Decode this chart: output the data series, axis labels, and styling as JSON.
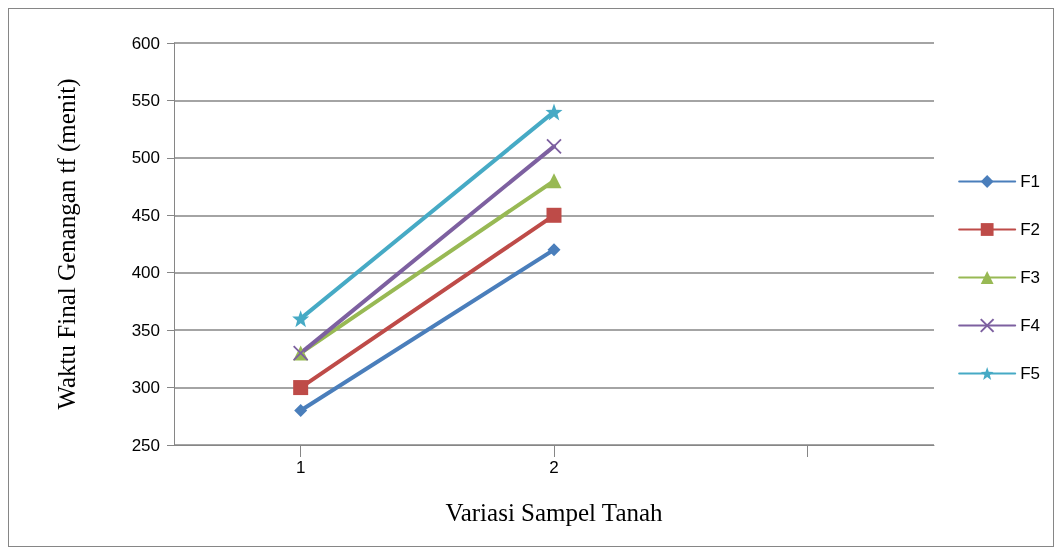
{
  "chart_data": {
    "type": "line",
    "xlabel": "Variasi Sampel Tanah",
    "ylabel": "Waktu Final Genangan tf (menit)",
    "categories": [
      "1",
      "2",
      null
    ],
    "series": [
      {
        "name": "F1",
        "color": "#4a7ebb",
        "marker": "diamond",
        "values": [
          280,
          420,
          null
        ]
      },
      {
        "name": "F2",
        "color": "#be4b48",
        "marker": "square",
        "values": [
          300,
          450,
          null
        ]
      },
      {
        "name": "F3",
        "color": "#98b954",
        "marker": "triangle",
        "values": [
          330,
          480,
          null
        ]
      },
      {
        "name": "F4",
        "color": "#7d60a0",
        "marker": "cross",
        "values": [
          330,
          510,
          null
        ]
      },
      {
        "name": "F5",
        "color": "#46aac5",
        "marker": "star",
        "values": [
          360,
          540,
          null
        ]
      }
    ],
    "ylim": [
      250,
      600
    ],
    "yticks": [
      250,
      300,
      350,
      400,
      450,
      500,
      550,
      600
    ],
    "grid": "y",
    "legend": "right",
    "line_style": "solid"
  }
}
